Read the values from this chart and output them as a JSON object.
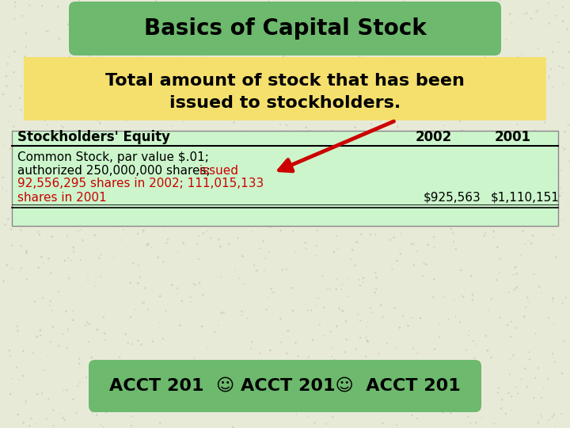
{
  "title": "Basics of Capital Stock",
  "title_bg": "#6db96d",
  "subtitle_line1": "Total amount of stock that has been",
  "subtitle_line2": "issued to stockholders.",
  "subtitle_bg": "#f5e06e",
  "bg_color": "#e8ead8",
  "table_bg": "#ccf5cc",
  "table_header": "Stockholders' Equity",
  "col1": "2002",
  "col2": "2001",
  "val1": "$925,563",
  "val2": "$1,110,151",
  "footer_bg": "#6db96d",
  "arrow_color": "#cc0000",
  "noise_color": "#888888"
}
